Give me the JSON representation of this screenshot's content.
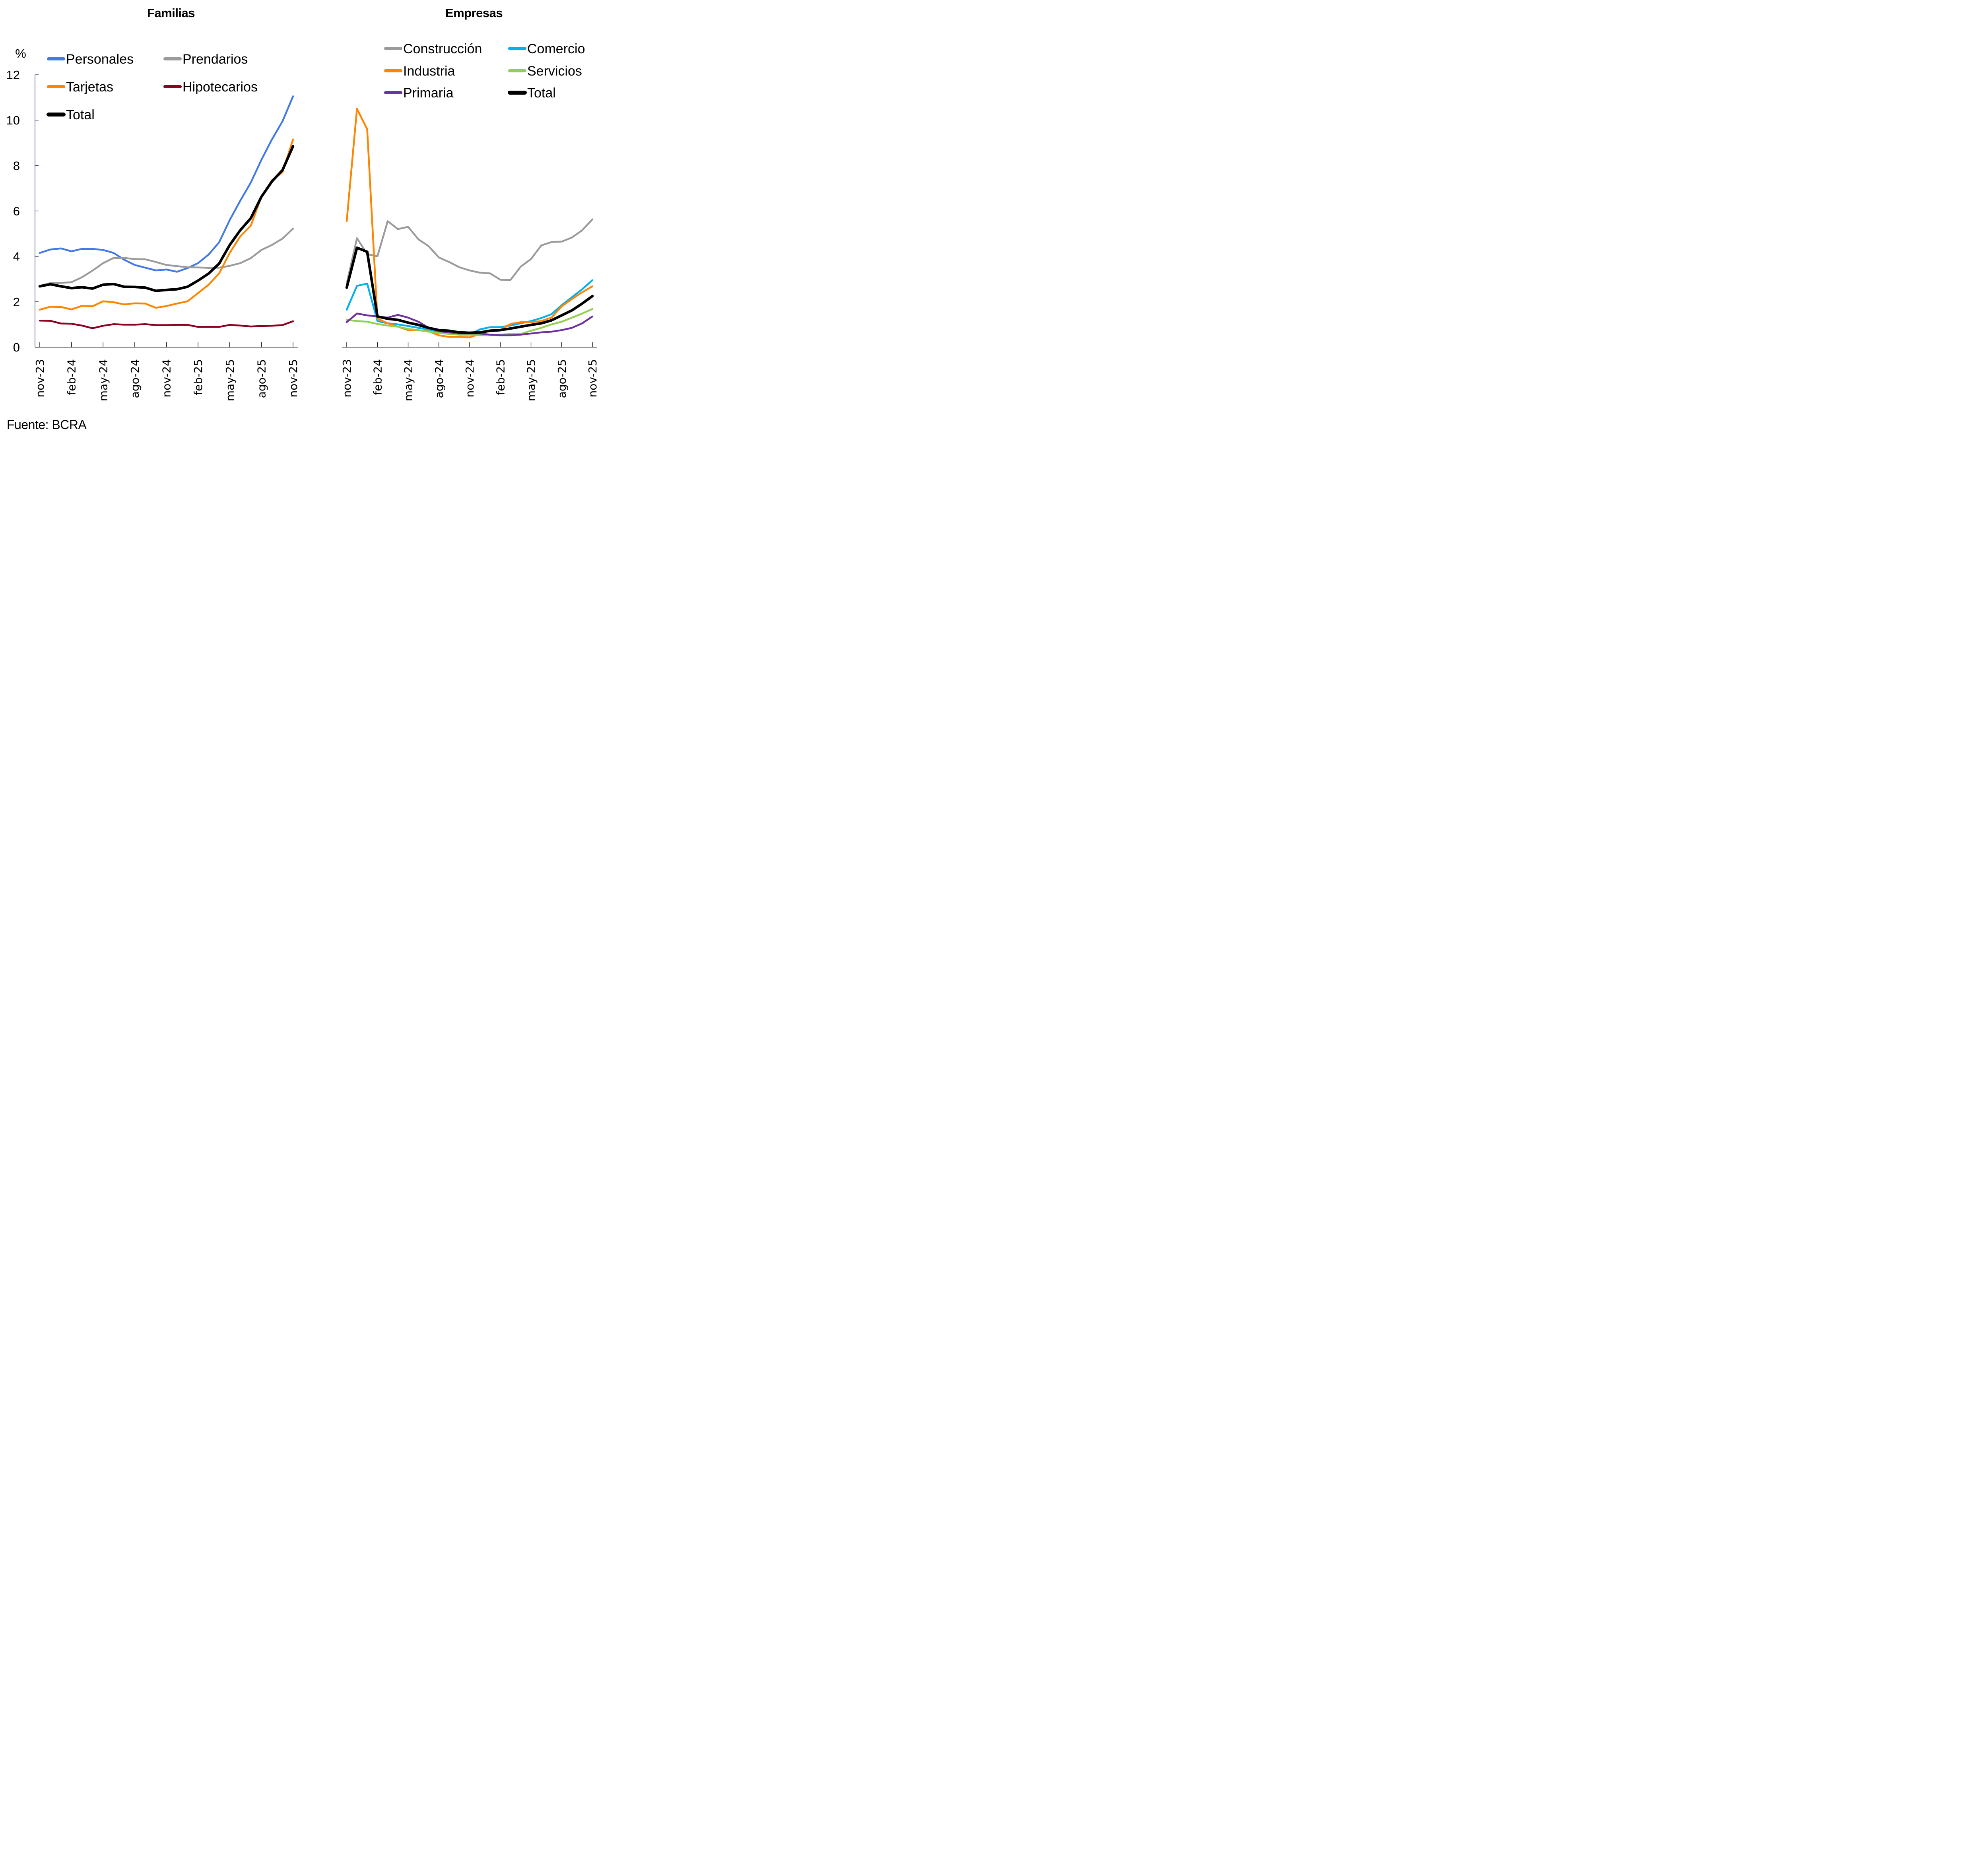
{
  "source": "Fuente: BCRA",
  "y_unit": "%",
  "chart_data": [
    {
      "type": "line",
      "title": "Familias",
      "xlabel": "",
      "ylabel": "%",
      "ylim": [
        0,
        12
      ],
      "yticks": [
        "0",
        "2",
        "4",
        "6",
        "8",
        "10",
        "12"
      ],
      "x": [
        "nov-23",
        "dic-23",
        "ene-24",
        "feb-24",
        "mar-24",
        "abr-24",
        "may-24",
        "jun-24",
        "jul-24",
        "ago-24",
        "sep-24",
        "oct-24",
        "nov-24",
        "dic-24",
        "ene-25",
        "feb-25",
        "mar-25",
        "abr-25",
        "may-25",
        "jun-25",
        "jul-25",
        "ago-25",
        "sep-25",
        "oct-25",
        "nov-25"
      ],
      "xtick_labels": [
        "nov-23",
        "feb-24",
        "may-24",
        "ago-24",
        "nov-24",
        "feb-25",
        "may-25",
        "ago-25",
        "nov-25"
      ],
      "legend_position": "top-left",
      "grid": false,
      "series": [
        {
          "name": "Personales",
          "color": "#4479E8",
          "width": "normal",
          "values": [
            4.15,
            4.3,
            4.35,
            4.22,
            4.33,
            4.33,
            4.28,
            4.15,
            3.85,
            3.62,
            3.5,
            3.38,
            3.42,
            3.32,
            3.48,
            3.7,
            4.08,
            4.62,
            5.6,
            6.45,
            7.25,
            8.25,
            9.15,
            9.95,
            11.05
          ]
        },
        {
          "name": "Prendarios",
          "color": "#9B9B9B",
          "width": "normal",
          "values": [
            2.7,
            2.82,
            2.83,
            2.86,
            3.08,
            3.37,
            3.7,
            3.93,
            3.93,
            3.88,
            3.87,
            3.75,
            3.62,
            3.57,
            3.52,
            3.51,
            3.49,
            3.5,
            3.58,
            3.7,
            3.92,
            4.28,
            4.5,
            4.78,
            5.22
          ]
        },
        {
          "name": "Tarjetas",
          "color": "#FF8500",
          "width": "normal",
          "values": [
            1.65,
            1.78,
            1.77,
            1.66,
            1.82,
            1.8,
            2.02,
            1.98,
            1.88,
            1.93,
            1.92,
            1.73,
            1.81,
            1.92,
            2.02,
            2.38,
            2.75,
            3.25,
            4.15,
            4.88,
            5.35,
            6.62,
            7.35,
            7.7,
            9.15
          ]
        },
        {
          "name": "Hipotecarios",
          "color": "#8B0020",
          "width": "normal",
          "values": [
            1.17,
            1.16,
            1.04,
            1.03,
            0.95,
            0.83,
            0.94,
            1.01,
            0.99,
            0.99,
            1.01,
            0.97,
            0.97,
            0.98,
            0.98,
            0.89,
            0.89,
            0.89,
            0.98,
            0.95,
            0.91,
            0.93,
            0.94,
            0.97,
            1.14
          ]
        },
        {
          "name": "Total",
          "color": "#000000",
          "width": "thick",
          "values": [
            2.68,
            2.77,
            2.68,
            2.6,
            2.64,
            2.58,
            2.75,
            2.78,
            2.66,
            2.65,
            2.62,
            2.48,
            2.52,
            2.55,
            2.66,
            2.93,
            3.24,
            3.68,
            4.5,
            5.15,
            5.68,
            6.62,
            7.3,
            7.8,
            8.85
          ]
        }
      ]
    },
    {
      "type": "line",
      "title": "Empresas",
      "xlabel": "",
      "ylabel": "",
      "ylim": [
        0,
        12
      ],
      "x": [
        "nov-23",
        "dic-23",
        "ene-24",
        "feb-24",
        "mar-24",
        "abr-24",
        "may-24",
        "jun-24",
        "jul-24",
        "ago-24",
        "sep-24",
        "oct-24",
        "nov-24",
        "dic-24",
        "ene-25",
        "feb-25",
        "mar-25",
        "abr-25",
        "may-25",
        "jun-25",
        "jul-25",
        "ago-25",
        "sep-25",
        "oct-25",
        "nov-25"
      ],
      "xtick_labels": [
        "nov-23",
        "feb-24",
        "may-24",
        "ago-24",
        "nov-24",
        "feb-25",
        "may-25",
        "ago-25",
        "nov-25"
      ],
      "legend_position": "top-right",
      "grid": false,
      "series": [
        {
          "name": "Construcción",
          "color": "#9B9B9B",
          "width": "normal",
          "values": [
            2.8,
            4.8,
            4.1,
            4.0,
            5.55,
            5.2,
            5.3,
            4.75,
            4.45,
            3.95,
            3.75,
            3.52,
            3.38,
            3.28,
            3.25,
            2.97,
            2.96,
            3.55,
            3.88,
            4.48,
            4.63,
            4.65,
            4.83,
            5.15,
            5.63
          ]
        },
        {
          "name": "Comercio",
          "color": "#00B0F0",
          "width": "normal",
          "values": [
            1.65,
            2.7,
            2.8,
            1.15,
            1.05,
            1.0,
            0.93,
            0.85,
            0.78,
            0.68,
            0.58,
            0.55,
            0.55,
            0.78,
            0.88,
            0.88,
            0.95,
            1.05,
            1.15,
            1.28,
            1.45,
            1.85,
            2.2,
            2.55,
            2.95
          ]
        },
        {
          "name": "Industria",
          "color": "#FF8500",
          "width": "normal",
          "values": [
            5.55,
            10.5,
            9.6,
            1.25,
            1.05,
            0.9,
            0.75,
            0.75,
            0.7,
            0.52,
            0.45,
            0.45,
            0.43,
            0.58,
            0.75,
            0.75,
            1.02,
            1.1,
            1.1,
            1.15,
            1.3,
            1.8,
            2.12,
            2.42,
            2.68
          ]
        },
        {
          "name": "Servicios",
          "color": "#92D050",
          "width": "normal",
          "values": [
            1.2,
            1.15,
            1.12,
            1.02,
            0.95,
            0.9,
            0.8,
            0.75,
            0.68,
            0.62,
            0.58,
            0.55,
            0.55,
            0.52,
            0.52,
            0.55,
            0.58,
            0.58,
            0.72,
            0.85,
            1.0,
            1.12,
            1.3,
            1.48,
            1.68
          ]
        },
        {
          "name": "Primaria",
          "color": "#7030A0",
          "width": "normal",
          "values": [
            1.1,
            1.48,
            1.4,
            1.35,
            1.3,
            1.42,
            1.3,
            1.12,
            0.85,
            0.7,
            0.65,
            0.6,
            0.6,
            0.6,
            0.55,
            0.52,
            0.52,
            0.55,
            0.6,
            0.65,
            0.68,
            0.75,
            0.85,
            1.05,
            1.35
          ]
        },
        {
          "name": "Total",
          "color": "#000000",
          "width": "thick",
          "values": [
            2.62,
            4.38,
            4.2,
            1.35,
            1.25,
            1.2,
            1.08,
            0.98,
            0.85,
            0.75,
            0.72,
            0.65,
            0.63,
            0.65,
            0.72,
            0.75,
            0.82,
            0.9,
            0.98,
            1.05,
            1.18,
            1.4,
            1.62,
            1.92,
            2.25
          ]
        }
      ]
    }
  ]
}
